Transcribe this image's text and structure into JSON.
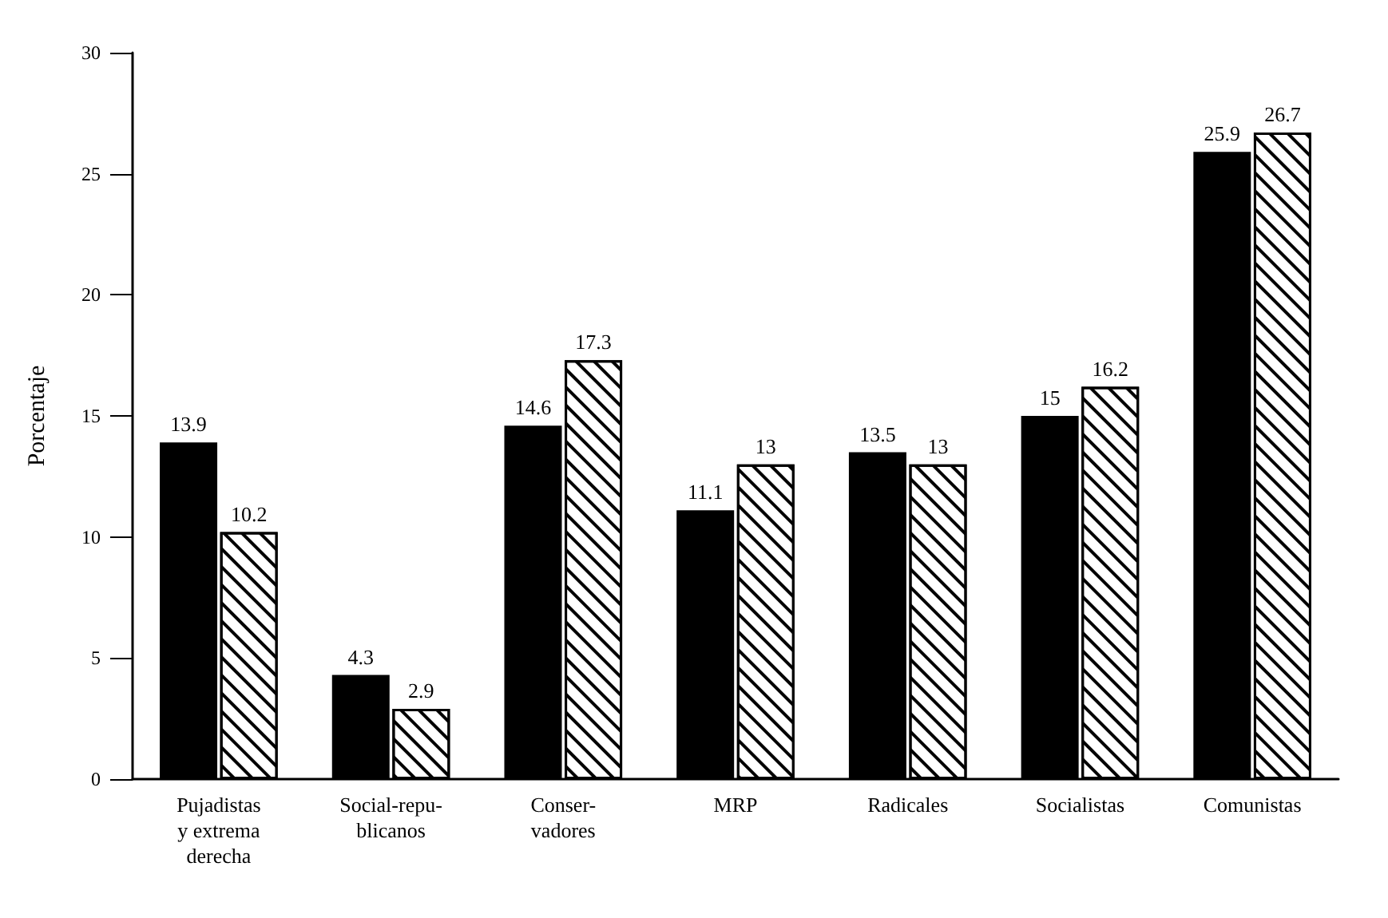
{
  "chart_data": {
    "type": "bar",
    "ylabel": "Porcentaje",
    "categories": [
      "Pujadistas\ny extrema\nderecha",
      "Social-repu-\nblicanos",
      "Conser-\nvadores",
      "MRP",
      "Radicales",
      "Socialistas",
      "Comunistas"
    ],
    "series": [
      {
        "color": "#000000",
        "values": [
          13.9,
          4.3,
          14.6,
          11.1,
          13.5,
          15,
          25.9
        ]
      },
      {
        "color": "#ffffff",
        "values": [
          10.2,
          2.9,
          17.3,
          13,
          13,
          16.2,
          26.7
        ]
      }
    ],
    "ylim": [
      0,
      30
    ],
    "yticks": [
      0,
      5,
      10,
      15,
      20,
      25,
      30
    ],
    "grid": false,
    "data_labels": true
  }
}
